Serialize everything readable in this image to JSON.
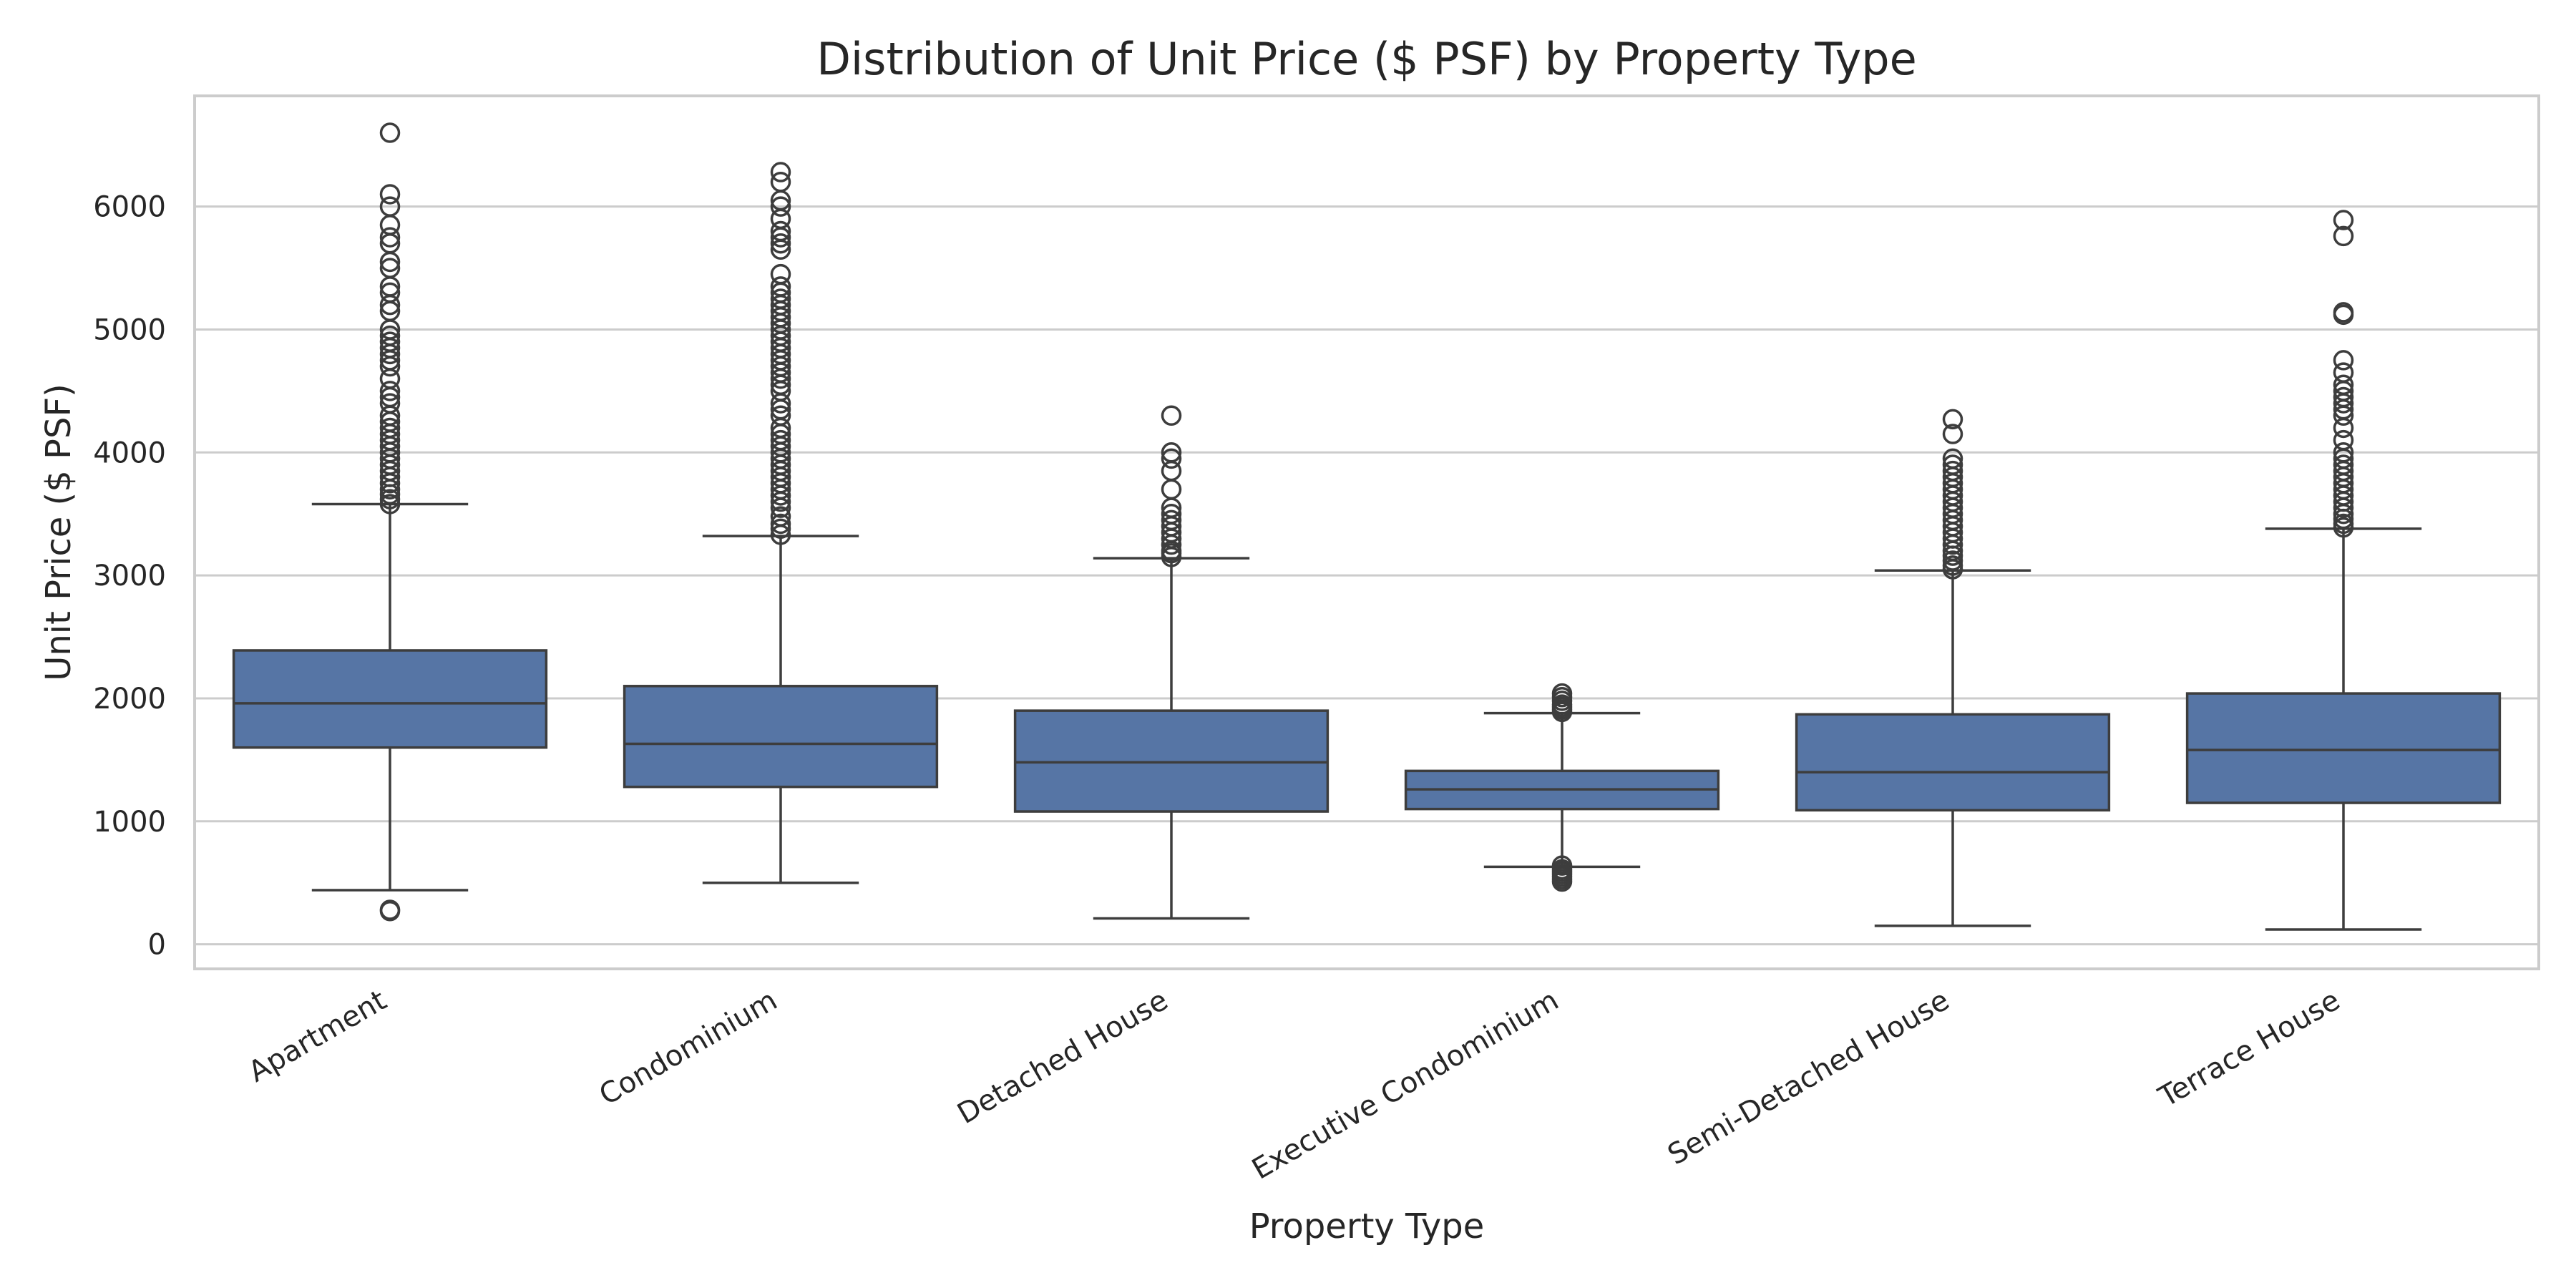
{
  "chart_data": {
    "type": "box",
    "title": "Distribution of Unit Price ($ PSF) by Property Type",
    "xlabel": "Property Type",
    "ylabel": "Unit Price ($ PSF)",
    "ylim": [
      -200,
      6900
    ],
    "yticks": [
      0,
      1000,
      2000,
      3000,
      4000,
      5000,
      6000
    ],
    "grid": "horizontal",
    "box_color": "#5675a5",
    "categories": [
      "Apartment",
      "Condominium",
      "Detached House",
      "Executive Condominium",
      "Semi-Detached House",
      "Terrace House"
    ],
    "boxes": [
      {
        "category": "Apartment",
        "whisker_low": 440,
        "q1": 1600,
        "median": 1960,
        "q3": 2390,
        "whisker_high": 3580,
        "fliers": [
          280,
          270,
          3580,
          3620,
          3660,
          3700,
          3750,
          3800,
          3850,
          3900,
          3950,
          4000,
          4050,
          4100,
          4150,
          4200,
          4250,
          4300,
          4400,
          4450,
          4500,
          4600,
          4700,
          4750,
          4800,
          4850,
          4900,
          4950,
          5000,
          5150,
          5200,
          5300,
          5350,
          5500,
          5550,
          5700,
          5750,
          5850,
          6000,
          6100,
          6600
        ]
      },
      {
        "category": "Condominium",
        "whisker_low": 500,
        "q1": 1280,
        "median": 1630,
        "q3": 2100,
        "whisker_high": 3320,
        "fliers": [
          3330,
          3380,
          3420,
          3480,
          3550,
          3600,
          3650,
          3700,
          3750,
          3800,
          3850,
          3900,
          3950,
          4000,
          4050,
          4100,
          4150,
          4200,
          4300,
          4350,
          4400,
          4500,
          4550,
          4600,
          4650,
          4700,
          4750,
          4800,
          4850,
          4900,
          4950,
          5000,
          5050,
          5100,
          5150,
          5200,
          5250,
          5300,
          5350,
          5450,
          5650,
          5700,
          5750,
          5800,
          5900,
          6000,
          6050,
          6200,
          6280
        ]
      },
      {
        "category": "Detached House",
        "whisker_low": 210,
        "q1": 1080,
        "median": 1480,
        "q3": 1900,
        "whisker_high": 3140,
        "fliers": [
          3150,
          3180,
          3200,
          3250,
          3300,
          3350,
          3400,
          3450,
          3500,
          3550,
          3700,
          3850,
          3950,
          4000,
          4300
        ]
      },
      {
        "category": "Executive Condominium",
        "whisker_low": 630,
        "q1": 1100,
        "median": 1260,
        "q3": 1410,
        "whisker_high": 1880,
        "fliers": [
          510,
          530,
          550,
          570,
          590,
          610,
          640,
          1890,
          1910,
          1930,
          1950,
          1980,
          2010,
          2040
        ]
      },
      {
        "category": "Semi-Detached House",
        "whisker_low": 150,
        "q1": 1090,
        "median": 1400,
        "q3": 1870,
        "whisker_high": 3040,
        "fliers": [
          3050,
          3080,
          3120,
          3160,
          3200,
          3250,
          3300,
          3350,
          3400,
          3450,
          3500,
          3550,
          3600,
          3650,
          3700,
          3750,
          3800,
          3850,
          3900,
          3950,
          4150,
          4270
        ]
      },
      {
        "category": "Terrace House",
        "whisker_low": 120,
        "q1": 1150,
        "median": 1580,
        "q3": 2040,
        "whisker_high": 3380,
        "fliers": [
          3390,
          3420,
          3460,
          3500,
          3550,
          3600,
          3650,
          3700,
          3750,
          3800,
          3850,
          3900,
          3950,
          4000,
          4100,
          4200,
          4300,
          4350,
          4400,
          4450,
          4500,
          4550,
          4650,
          4750,
          5120,
          5140,
          5760,
          5890
        ]
      }
    ]
  }
}
